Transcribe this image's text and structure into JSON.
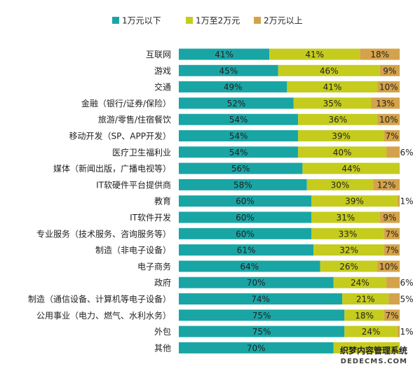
{
  "chart_data": {
    "type": "bar",
    "orientation": "horizontal",
    "stacked": true,
    "legend": "top",
    "categories": [
      "互联网",
      "游戏",
      "交通",
      "金融（银行/证券/保险）",
      "旅游/零售/住宿餐饮",
      "移动开发（SP、APP开发）",
      "医疗卫生福利业",
      "媒体（新闻出版，广播电视等）",
      "IT软硬件平台提供商",
      "教育",
      "IT软件开发",
      "专业服务（技术服务、咨询服务等）",
      "制造（非电子设备）",
      "电子商务",
      "政府",
      "制造（通信设备、计算机等电子设备）",
      "公用事业（电力、燃气、水利水务）",
      "外包",
      "其他"
    ],
    "series": [
      {
        "name": "1万元以下",
        "color": "#1aa5a5",
        "values": [
          41,
          45,
          49,
          52,
          54,
          54,
          54,
          56,
          58,
          60,
          60,
          60,
          61,
          64,
          70,
          74,
          75,
          75,
          70
        ],
        "labels": [
          "41%",
          "45%",
          "49%",
          "52%",
          "54%",
          "54%",
          "54%",
          "56%",
          "58%",
          "60%",
          "60%",
          "60%",
          "61%",
          "64%",
          "70%",
          "74%",
          "75%",
          "75%",
          "70%"
        ]
      },
      {
        "name": "1万至2万元",
        "color": "#c5cc1e",
        "values": [
          41,
          46,
          41,
          35,
          36,
          39,
          40,
          44,
          30,
          39,
          31,
          33,
          32,
          26,
          24,
          21,
          18,
          24,
          30
        ],
        "labels": [
          "41%",
          "46%",
          "41%",
          "35%",
          "36%",
          "39%",
          "40%",
          "44%",
          "30%",
          "39%",
          "31%",
          "33%",
          "32%",
          "26%",
          "24%",
          "21%",
          "18%",
          "24%",
          ""
        ]
      },
      {
        "name": "2万元以上",
        "color": "#d4a24a",
        "values": [
          18,
          9,
          10,
          13,
          10,
          7,
          6,
          0,
          12,
          1,
          9,
          7,
          7,
          10,
          6,
          5,
          7,
          1,
          0
        ],
        "labels": [
          "18%",
          "9%",
          "10%",
          "13%",
          "10%",
          "7%",
          "6%",
          "",
          "12%",
          "1%",
          "9%",
          "7%",
          "7%",
          "10%",
          "6%",
          "5%",
          "7%",
          "1%",
          ""
        ]
      }
    ]
  },
  "watermark": {
    "line1": "织梦内容管理系统",
    "line2": "DEDECMS.COM"
  }
}
